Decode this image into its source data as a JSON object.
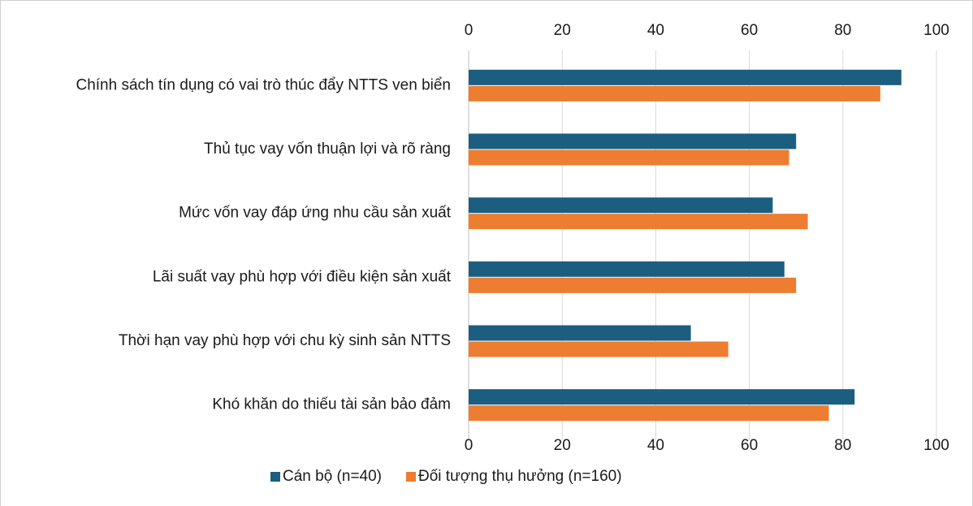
{
  "chart_data": {
    "type": "barh",
    "categories": [
      "Chính sách tín dụng có vai trò thúc đẩy NTTS ven biển",
      "Thủ tục vay vốn thuận lợi và rõ ràng",
      "Mức vốn vay đáp ứng nhu cầu sản xuất",
      "Lãi suất vay phù hợp với điều kiện sản xuất",
      "Thời hạn vay phù hợp với chu kỳ sinh sản NTTS",
      "Khó khăn do thiếu tài sản bảo đảm"
    ],
    "series": [
      {
        "name": "Cán bộ (n=40)",
        "color": "#1b5e80",
        "values": [
          92.5,
          70,
          65,
          67.5,
          47.5,
          82.5
        ]
      },
      {
        "name": "Đối tượng thụ hưởng (n=160)",
        "color": "#ed7d31",
        "values": [
          88,
          68.5,
          72.5,
          70,
          55.5,
          77
        ]
      }
    ],
    "xlim": [
      0,
      100
    ],
    "xticks": [
      0,
      20,
      40,
      60,
      80,
      100
    ],
    "grid": true,
    "legend": "bottom"
  }
}
